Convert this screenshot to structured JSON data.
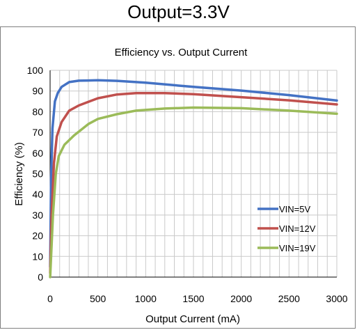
{
  "page_title": "Output=3.3V",
  "chart_data": {
    "type": "line",
    "title": "Efficiency vs. Output Current",
    "xlabel": "Output Current (mA)",
    "ylabel": "Efficiency (%)",
    "xlim": [
      0,
      3000
    ],
    "ylim": [
      0,
      100
    ],
    "xticks": [
      0,
      500,
      1000,
      1500,
      2000,
      2500,
      3000
    ],
    "yticks": [
      0,
      10,
      20,
      30,
      40,
      50,
      60,
      70,
      80,
      90,
      100
    ],
    "grid": true,
    "legend_position": "bottom-right",
    "series": [
      {
        "name": "VIN=5V",
        "color": "#4472c4",
        "points": [
          [
            1,
            5
          ],
          [
            10,
            48
          ],
          [
            25,
            72
          ],
          [
            50,
            85
          ],
          [
            80,
            89
          ],
          [
            120,
            92
          ],
          [
            200,
            94.3
          ],
          [
            300,
            95
          ],
          [
            500,
            95.2
          ],
          [
            700,
            94.9
          ],
          [
            1000,
            94
          ],
          [
            1500,
            92
          ],
          [
            2000,
            90.2
          ],
          [
            2500,
            88
          ],
          [
            3000,
            85.4
          ]
        ]
      },
      {
        "name": "VIN=12V",
        "color": "#c0504d",
        "points": [
          [
            1,
            2
          ],
          [
            15,
            30
          ],
          [
            40,
            55
          ],
          [
            70,
            68
          ],
          [
            120,
            75
          ],
          [
            200,
            80.5
          ],
          [
            300,
            83
          ],
          [
            500,
            86.5
          ],
          [
            700,
            88.3
          ],
          [
            900,
            89
          ],
          [
            1200,
            89
          ],
          [
            1500,
            88.5
          ],
          [
            2000,
            87
          ],
          [
            2500,
            85.5
          ],
          [
            3000,
            83.5
          ]
        ]
      },
      {
        "name": "VIN=19V",
        "color": "#9bbb59",
        "points": [
          [
            1,
            0
          ],
          [
            30,
            30
          ],
          [
            60,
            50
          ],
          [
            90,
            58.5
          ],
          [
            150,
            64
          ],
          [
            250,
            68.5
          ],
          [
            400,
            74
          ],
          [
            500,
            76.5
          ],
          [
            700,
            78.8
          ],
          [
            900,
            80.5
          ],
          [
            1200,
            81.5
          ],
          [
            1500,
            82
          ],
          [
            2000,
            81.7
          ],
          [
            2500,
            80.5
          ],
          [
            3000,
            79
          ]
        ]
      }
    ]
  }
}
